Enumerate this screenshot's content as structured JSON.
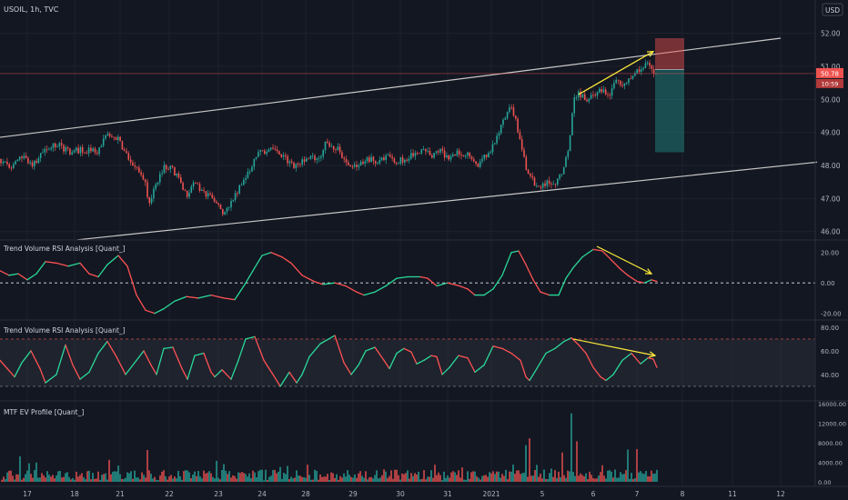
{
  "header": {
    "symbol_info": "USOIL, 1h, TVC",
    "currency_button": "USD"
  },
  "colors": {
    "background": "#131722",
    "grid": "#1e222d",
    "separator": "#2a2e39",
    "up": "#26a69a",
    "down": "#ef5350",
    "text": "#d1d4dc",
    "axis_text": "#b2b5be",
    "annotation": "#ffeb3b",
    "channel": "#c8c8c8",
    "rsi_up": "#2ad99a",
    "rsi_down": "#ff5252"
  },
  "chart_data": [
    {
      "type": "candlestick",
      "title": "USOIL, 1h, TVC",
      "yticks": [
        "52.00",
        "51.00",
        "50.00",
        "49.00",
        "48.00",
        "47.00",
        "46.00"
      ],
      "ylim": [
        45.8,
        52.4
      ],
      "last_price_label": "50.78",
      "countdown_label": "10:59",
      "close_path": [
        [
          0,
          48.2
        ],
        [
          14,
          47.9
        ],
        [
          24,
          48.3
        ],
        [
          37,
          48.0
        ],
        [
          50,
          48.5
        ],
        [
          64,
          48.6
        ],
        [
          78,
          48.4
        ],
        [
          92,
          48.5
        ],
        [
          106,
          48.4
        ],
        [
          118,
          48.9
        ],
        [
          130,
          48.8
        ],
        [
          142,
          48.2
        ],
        [
          150,
          47.9
        ],
        [
          158,
          47.6
        ],
        [
          164,
          46.9
        ],
        [
          172,
          47.4
        ],
        [
          180,
          48.0
        ],
        [
          188,
          47.9
        ],
        [
          196,
          47.7
        ],
        [
          205,
          47.1
        ],
        [
          212,
          47.4
        ],
        [
          220,
          47.3
        ],
        [
          228,
          47.1
        ],
        [
          236,
          46.9
        ],
        [
          244,
          46.6
        ],
        [
          252,
          46.8
        ],
        [
          260,
          47.2
        ],
        [
          268,
          47.5
        ],
        [
          276,
          48.0
        ],
        [
          284,
          48.4
        ],
        [
          292,
          48.3
        ],
        [
          300,
          48.5
        ],
        [
          310,
          48.3
        ],
        [
          320,
          48.0
        ],
        [
          330,
          48.1
        ],
        [
          340,
          48.3
        ],
        [
          350,
          48.2
        ],
        [
          358,
          48.7
        ],
        [
          366,
          48.6
        ],
        [
          374,
          48.4
        ],
        [
          384,
          47.9
        ],
        [
          394,
          48.0
        ],
        [
          404,
          48.2
        ],
        [
          414,
          48.1
        ],
        [
          424,
          48.3
        ],
        [
          434,
          48.1
        ],
        [
          444,
          48.2
        ],
        [
          454,
          48.3
        ],
        [
          464,
          48.4
        ],
        [
          474,
          48.3
        ],
        [
          484,
          48.4
        ],
        [
          494,
          48.2
        ],
        [
          504,
          48.4
        ],
        [
          514,
          48.3
        ],
        [
          524,
          48.0
        ],
        [
          534,
          48.3
        ],
        [
          544,
          48.7
        ],
        [
          552,
          49.3
        ],
        [
          560,
          49.8
        ],
        [
          566,
          49.4
        ],
        [
          572,
          48.8
        ],
        [
          578,
          48.0
        ],
        [
          584,
          47.6
        ],
        [
          592,
          47.3
        ],
        [
          600,
          47.5
        ],
        [
          608,
          47.4
        ],
        [
          614,
          47.6
        ],
        [
          620,
          48.0
        ],
        [
          626,
          48.7
        ],
        [
          630,
          50.0
        ],
        [
          636,
          50.2
        ],
        [
          642,
          50.0
        ],
        [
          650,
          50.1
        ],
        [
          658,
          50.3
        ],
        [
          664,
          50.2
        ],
        [
          670,
          50.1
        ],
        [
          676,
          50.6
        ],
        [
          684,
          50.5
        ],
        [
          690,
          50.6
        ],
        [
          696,
          50.7
        ],
        [
          702,
          50.9
        ],
        [
          708,
          51.0
        ],
        [
          714,
          51.1
        ],
        [
          718,
          50.9
        ],
        [
          722,
          50.78
        ]
      ],
      "channel_upper": [
        [
          0,
          48.85
        ],
        [
          858,
          51.85
        ]
      ],
      "channel_lower": [
        [
          85,
          45.75
        ],
        [
          898,
          48.1
        ]
      ],
      "annotation_arrow": [
        [
          636,
          50.15
        ],
        [
          718,
          51.45
        ]
      ],
      "risk_box": {
        "from": 720,
        "to": 752,
        "stop": 51.85,
        "entry": 50.9,
        "target": 48.4
      }
    },
    {
      "type": "line",
      "title": "Trend Volume RSI Analysis [Quant_]",
      "yticks": [
        "20.00",
        "0.00",
        "-20.00"
      ],
      "ylim": [
        -22,
        27
      ],
      "zero_line": 0,
      "values": [
        [
          0,
          8
        ],
        [
          10,
          5
        ],
        [
          20,
          6
        ],
        [
          30,
          2
        ],
        [
          40,
          6
        ],
        [
          50,
          14
        ],
        [
          62,
          13
        ],
        [
          75,
          11
        ],
        [
          88,
          13
        ],
        [
          98,
          6
        ],
        [
          108,
          4
        ],
        [
          118,
          12
        ],
        [
          130,
          18
        ],
        [
          140,
          11
        ],
        [
          150,
          -8
        ],
        [
          160,
          -18
        ],
        [
          170,
          -20
        ],
        [
          180,
          -17
        ],
        [
          192,
          -12
        ],
        [
          205,
          -9
        ],
        [
          218,
          -10
        ],
        [
          232,
          -8
        ],
        [
          246,
          -10
        ],
        [
          258,
          -11
        ],
        [
          268,
          -2
        ],
        [
          278,
          8
        ],
        [
          288,
          18
        ],
        [
          298,
          20
        ],
        [
          310,
          17
        ],
        [
          320,
          13
        ],
        [
          332,
          5
        ],
        [
          345,
          1
        ],
        [
          355,
          -1
        ],
        [
          368,
          0
        ],
        [
          380,
          -2
        ],
        [
          392,
          -6
        ],
        [
          400,
          -8
        ],
        [
          412,
          -6
        ],
        [
          424,
          -2
        ],
        [
          436,
          3
        ],
        [
          448,
          4
        ],
        [
          462,
          4
        ],
        [
          470,
          3
        ],
        [
          480,
          -2
        ],
        [
          492,
          0
        ],
        [
          505,
          -2
        ],
        [
          514,
          -4
        ],
        [
          522,
          -8
        ],
        [
          532,
          -8
        ],
        [
          542,
          -4
        ],
        [
          552,
          5
        ],
        [
          562,
          20
        ],
        [
          570,
          21
        ],
        [
          578,
          12
        ],
        [
          586,
          2
        ],
        [
          594,
          -6
        ],
        [
          604,
          -8
        ],
        [
          614,
          -8
        ],
        [
          622,
          3
        ],
        [
          630,
          10
        ],
        [
          640,
          17
        ],
        [
          652,
          22
        ],
        [
          662,
          21
        ],
        [
          672,
          15
        ],
        [
          682,
          9
        ],
        [
          690,
          5
        ],
        [
          700,
          1
        ],
        [
          708,
          0
        ],
        [
          716,
          2
        ],
        [
          722,
          1
        ]
      ],
      "annotation_arrow": [
        [
          656,
          24
        ],
        [
          716,
          6
        ]
      ]
    },
    {
      "type": "line",
      "title": "Trend Volume RSI Analysis [Quant_]",
      "yticks": [
        "80.00",
        "60.00",
        "40.00"
      ],
      "ylim": [
        20,
        83
      ],
      "band_levels": [
        70,
        30
      ],
      "values": [
        [
          0,
          52
        ],
        [
          8,
          45
        ],
        [
          16,
          38
        ],
        [
          24,
          50
        ],
        [
          34,
          60
        ],
        [
          44,
          45
        ],
        [
          50,
          33
        ],
        [
          62,
          40
        ],
        [
          72,
          65
        ],
        [
          80,
          48
        ],
        [
          88,
          36
        ],
        [
          98,
          42
        ],
        [
          108,
          58
        ],
        [
          118,
          68
        ],
        [
          128,
          55
        ],
        [
          138,
          40
        ],
        [
          150,
          52
        ],
        [
          158,
          60
        ],
        [
          166,
          48
        ],
        [
          172,
          40
        ],
        [
          180,
          62
        ],
        [
          190,
          63
        ],
        [
          200,
          45
        ],
        [
          206,
          36
        ],
        [
          214,
          56
        ],
        [
          224,
          58
        ],
        [
          232,
          42
        ],
        [
          236,
          38
        ],
        [
          244,
          44
        ],
        [
          254,
          36
        ],
        [
          262,
          52
        ],
        [
          270,
          70
        ],
        [
          280,
          72
        ],
        [
          290,
          52
        ],
        [
          300,
          40
        ],
        [
          308,
          30
        ],
        [
          318,
          42
        ],
        [
          326,
          33
        ],
        [
          332,
          40
        ],
        [
          340,
          55
        ],
        [
          352,
          66
        ],
        [
          368,
          73
        ],
        [
          378,
          50
        ],
        [
          386,
          40
        ],
        [
          394,
          48
        ],
        [
          402,
          60
        ],
        [
          412,
          63
        ],
        [
          422,
          52
        ],
        [
          428,
          45
        ],
        [
          436,
          58
        ],
        [
          444,
          62
        ],
        [
          452,
          59
        ],
        [
          458,
          49
        ],
        [
          466,
          52
        ],
        [
          474,
          56
        ],
        [
          480,
          55
        ],
        [
          486,
          40
        ],
        [
          494,
          46
        ],
        [
          504,
          56
        ],
        [
          514,
          54
        ],
        [
          522,
          42
        ],
        [
          532,
          48
        ],
        [
          542,
          64
        ],
        [
          552,
          62
        ],
        [
          562,
          58
        ],
        [
          572,
          52
        ],
        [
          578,
          38
        ],
        [
          582,
          35
        ],
        [
          590,
          45
        ],
        [
          600,
          58
        ],
        [
          610,
          62
        ],
        [
          620,
          68
        ],
        [
          628,
          71
        ],
        [
          636,
          65
        ],
        [
          644,
          58
        ],
        [
          652,
          46
        ],
        [
          660,
          38
        ],
        [
          666,
          35
        ],
        [
          674,
          40
        ],
        [
          684,
          52
        ],
        [
          694,
          58
        ],
        [
          704,
          49
        ],
        [
          712,
          54
        ],
        [
          718,
          53
        ],
        [
          722,
          46
        ]
      ],
      "annotation_arrow": [
        [
          630,
          70
        ],
        [
          720,
          56
        ]
      ]
    },
    {
      "type": "bar",
      "title": "MTF EV Profile [Quant_]",
      "yticks": [
        "16000.00",
        "12000.00",
        "8000.00",
        "4000.00",
        "0.00"
      ],
      "ylim": [
        0,
        16000
      ],
      "x_step": 2,
      "seed": 7,
      "spikes": [
        [
          22,
          5200
        ],
        [
          32,
          3800
        ],
        [
          120,
          4500
        ],
        [
          162,
          6500
        ],
        [
          238,
          4300
        ],
        [
          478,
          3500
        ],
        [
          578,
          7500
        ],
        [
          582,
          8900
        ],
        [
          618,
          6000
        ],
        [
          628,
          14000
        ],
        [
          634,
          8300
        ],
        [
          690,
          6600
        ],
        [
          700,
          6700
        ]
      ]
    }
  ],
  "x_axis": {
    "labels": [
      "17",
      "18",
      "21",
      "22",
      "23",
      "24",
      "28",
      "29",
      "30",
      "31",
      "2021",
      "5",
      "6",
      "7",
      "8",
      "11",
      "12"
    ]
  }
}
